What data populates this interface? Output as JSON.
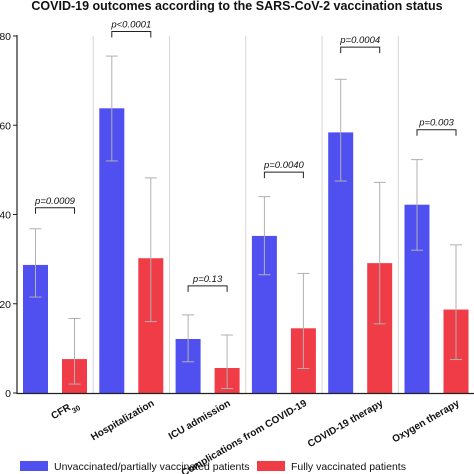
{
  "chart_data": {
    "type": "bar",
    "title": "COVID-19 outcomes according to the SARS-CoV-2 vaccination status",
    "xlabel": "",
    "ylabel": "",
    "ylim": [
      0,
      80
    ],
    "yticks": [
      "0",
      "20",
      "40",
      "60",
      "80"
    ],
    "grid": false,
    "legend_position": "bottom",
    "categories": [
      "CFR30",
      "Hospitalization",
      "ICU admission",
      "Complications from COVID-19",
      "COVID-19 therapy",
      "Oxygen therapy"
    ],
    "category_display": [
      {
        "main": "CFR",
        "sub": "30"
      },
      {
        "main": "Hospitalization",
        "sub": ""
      },
      {
        "main": "ICU admission",
        "sub": ""
      },
      {
        "main": "Complications from COVID-19",
        "sub": ""
      },
      {
        "main": "COVID-19 therapy",
        "sub": ""
      },
      {
        "main": "Oxygen therapy",
        "sub": ""
      }
    ],
    "series": [
      {
        "name": "Unvaccinated/partially vaccinated patients",
        "color": "#5050f0",
        "values": [
          28.7,
          63.8,
          12.1,
          35.2,
          58.4,
          42.2
        ],
        "error_low": [
          21.5,
          52.0,
          7.0,
          26.5,
          47.5,
          32.0
        ],
        "error_high": [
          36.8,
          75.5,
          17.5,
          44.0,
          70.3,
          52.3
        ]
      },
      {
        "name": "Fully vaccinated patients",
        "color": "#f03c46",
        "values": [
          7.6,
          30.2,
          5.6,
          14.5,
          29.1,
          18.7
        ],
        "error_low": [
          2.0,
          16.0,
          1.0,
          5.5,
          15.5,
          7.5
        ],
        "error_high": [
          16.7,
          48.2,
          13.0,
          26.8,
          47.2,
          33.2
        ]
      }
    ],
    "annotations": [
      "p=0.0009",
      "p<0.0001",
      "p=0.13",
      "p=0.0040",
      "p=0.0004",
      "p=0.003"
    ],
    "annotation_levels": [
      41.5,
      81.0,
      24.0,
      49.5,
      77.5,
      59.0
    ]
  }
}
